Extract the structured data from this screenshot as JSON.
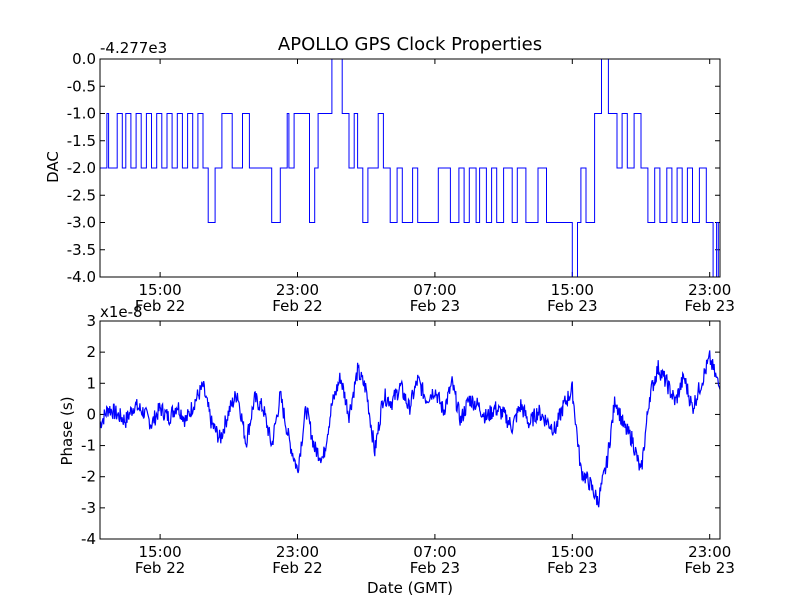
{
  "chart_data": [
    {
      "type": "line",
      "title": "APOLLO GPS Clock Properties",
      "offset_label": "-4.277e3",
      "xlabel": "",
      "ylabel": "DAC",
      "ylim": [
        -4.0,
        0.0
      ],
      "yticks": [
        "0.0",
        "-0.5",
        "-1.0",
        "-1.5",
        "-2.0",
        "-2.5",
        "-3.0",
        "-3.5",
        "-4.0"
      ],
      "ytick_values": [
        0.0,
        -0.5,
        -1.0,
        -1.5,
        -2.0,
        -2.5,
        -3.0,
        -3.5,
        -4.0
      ],
      "xticks": [
        {
          "time": "15:00",
          "date": "Feb 22",
          "hour": 15
        },
        {
          "time": "23:00",
          "date": "Feb 22",
          "hour": 23
        },
        {
          "time": "07:00",
          "date": "Feb 23",
          "hour": 31
        },
        {
          "time": "15:00",
          "date": "Feb 23",
          "hour": 39
        },
        {
          "time": "23:00",
          "date": "Feb 23",
          "hour": 47
        }
      ],
      "xlim": [
        11.5,
        47.6
      ],
      "color": "#0000ff",
      "series": [
        {
          "name": "",
          "x": [
            11.5,
            11.9,
            12.0,
            12.5,
            12.8,
            13.0,
            13.3,
            13.6,
            13.9,
            14.2,
            14.5,
            14.8,
            15.1,
            15.4,
            15.7,
            16.0,
            16.3,
            16.6,
            16.9,
            17.2,
            17.5,
            17.6,
            17.8,
            18.2,
            18.6,
            19.2,
            19.8,
            20.2,
            20.7,
            21.5,
            22.0,
            22.4,
            22.5,
            22.8,
            23.4,
            23.7,
            24.0,
            24.2,
            24.7,
            25.0,
            25.6,
            26.0,
            26.3,
            26.5,
            26.8,
            27.1,
            27.7,
            28.0,
            28.4,
            28.8,
            29.1,
            29.4,
            29.7,
            30.0,
            30.5,
            31.2,
            31.9,
            32.4,
            32.7,
            33.0,
            33.4,
            33.6,
            34.0,
            34.3,
            34.6,
            35.0,
            35.5,
            35.8,
            36.3,
            36.6,
            37.0,
            37.5,
            38.0,
            38.5,
            39.0,
            39.3,
            39.5,
            39.8,
            40.3,
            40.7,
            41.1,
            41.6,
            41.9,
            42.2,
            42.6,
            43.0,
            43.4,
            43.8,
            44.1,
            44.5,
            44.8,
            45.1,
            45.4,
            45.7,
            46.0,
            46.4,
            46.8,
            47.2,
            47.4,
            47.5,
            47.6
          ],
          "y": [
            -2.0,
            -1.0,
            -2.0,
            -1.0,
            -2.0,
            -1.0,
            -2.0,
            -1.0,
            -2.0,
            -1.0,
            -2.0,
            -1.0,
            -2.0,
            -1.0,
            -2.0,
            -1.0,
            -2.0,
            -1.0,
            -2.0,
            -1.0,
            -2.0,
            -2.0,
            -3.0,
            -2.0,
            -1.0,
            -2.0,
            -1.0,
            -2.0,
            -2.0,
            -3.0,
            -2.0,
            -1.0,
            -2.0,
            -1.0,
            -1.0,
            -3.0,
            -2.0,
            -1.0,
            -1.0,
            0.0,
            -1.0,
            -2.0,
            -1.0,
            -2.0,
            -3.0,
            -2.0,
            -1.0,
            -2.0,
            -3.0,
            -2.0,
            -3.0,
            -3.0,
            -2.0,
            -3.0,
            -3.0,
            -2.0,
            -3.0,
            -2.0,
            -3.0,
            -2.0,
            -3.0,
            -2.0,
            -3.0,
            -2.0,
            -3.0,
            -2.0,
            -3.0,
            -2.0,
            -3.0,
            -3.0,
            -2.0,
            -3.0,
            -3.0,
            -3.0,
            -4.0,
            -3.0,
            -2.0,
            -3.0,
            -1.0,
            0.0,
            -1.0,
            -2.0,
            -1.0,
            -2.0,
            -1.0,
            -2.0,
            -3.0,
            -2.0,
            -3.0,
            -2.0,
            -3.0,
            -2.0,
            -3.0,
            -2.0,
            -3.0,
            -2.0,
            -3.0,
            -4.0,
            -3.0,
            -4.0,
            -3.0
          ]
        }
      ]
    },
    {
      "type": "line",
      "title": "",
      "offset_label": "x1e-8",
      "xlabel": "Date (GMT)",
      "ylabel": "Phase (s)",
      "ylim": [
        -4,
        3
      ],
      "yticks": [
        "3",
        "2",
        "1",
        "0",
        "-1",
        "-2",
        "-3",
        "-4"
      ],
      "ytick_values": [
        3,
        2,
        1,
        0,
        -1,
        -2,
        -3,
        -4
      ],
      "xticks": [
        {
          "time": "15:00",
          "date": "Feb 22",
          "hour": 15
        },
        {
          "time": "23:00",
          "date": "Feb 22",
          "hour": 23
        },
        {
          "time": "07:00",
          "date": "Feb 23",
          "hour": 31
        },
        {
          "time": "15:00",
          "date": "Feb 23",
          "hour": 39
        },
        {
          "time": "23:00",
          "date": "Feb 23",
          "hour": 47
        }
      ],
      "xlim": [
        11.5,
        47.6
      ],
      "color": "#0000ff",
      "series": [
        {
          "name": "",
          "x": [
            11.5,
            12.0,
            12.5,
            13.0,
            13.5,
            14.0,
            14.5,
            15.0,
            15.5,
            16.0,
            16.5,
            17.0,
            17.5,
            18.0,
            18.5,
            19.0,
            19.5,
            20.0,
            20.5,
            21.0,
            21.5,
            22.0,
            22.5,
            23.0,
            23.5,
            24.0,
            24.5,
            25.0,
            25.5,
            26.0,
            26.5,
            27.0,
            27.5,
            28.0,
            28.5,
            29.0,
            29.5,
            30.0,
            30.5,
            31.0,
            31.5,
            32.0,
            32.5,
            33.0,
            33.5,
            34.0,
            34.5,
            35.0,
            35.5,
            36.0,
            36.5,
            37.0,
            37.5,
            38.0,
            38.5,
            39.0,
            39.5,
            40.0,
            40.5,
            41.0,
            41.5,
            42.0,
            42.5,
            43.0,
            43.5,
            44.0,
            44.5,
            45.0,
            45.5,
            46.0,
            46.5,
            47.0,
            47.6
          ],
          "y": [
            -0.3,
            0.2,
            0.0,
            -0.2,
            0.3,
            0.1,
            -0.3,
            0.2,
            -0.1,
            0.3,
            -0.2,
            0.4,
            0.9,
            -0.3,
            -0.8,
            0.1,
            0.7,
            -0.9,
            0.5,
            0.2,
            -1.0,
            0.6,
            -0.8,
            -1.8,
            0.2,
            -1.1,
            -1.4,
            0.3,
            1.2,
            0.0,
            1.4,
            0.8,
            -1.2,
            0.6,
            0.4,
            0.9,
            0.2,
            1.1,
            0.5,
            0.8,
            0.1,
            1.0,
            -0.2,
            0.5,
            0.3,
            -0.1,
            0.2,
            0.0,
            -0.4,
            0.3,
            -0.3,
            0.1,
            -0.2,
            -0.5,
            0.3,
            0.8,
            -1.8,
            -2.2,
            -2.8,
            -1.6,
            0.5,
            -0.4,
            -0.8,
            -1.9,
            0.6,
            1.5,
            1.0,
            0.4,
            1.2,
            0.2,
            1.0,
            1.8,
            0.8
          ]
        }
      ]
    }
  ]
}
